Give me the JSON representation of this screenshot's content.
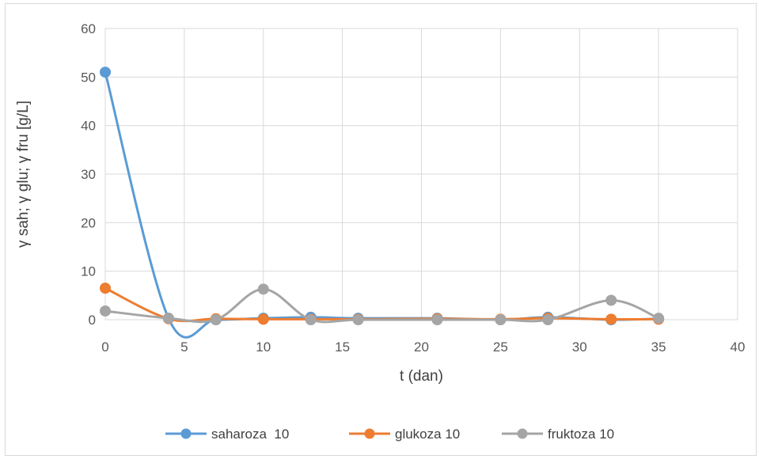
{
  "chart_data": {
    "type": "line",
    "xlabel": "t (dan)",
    "ylabel": "γ sah; γ glu; γ fru [g/L]",
    "xlim": [
      0,
      40
    ],
    "ylim": [
      0,
      60
    ],
    "xticks": [
      0,
      5,
      10,
      15,
      20,
      25,
      30,
      35,
      40
    ],
    "yticks": [
      0,
      10,
      20,
      30,
      40,
      50,
      60
    ],
    "grid": true,
    "legend_position": "bottom",
    "x": [
      0,
      4,
      7,
      10,
      13,
      16,
      21,
      25,
      28,
      32,
      35
    ],
    "series": [
      {
        "name": "saharoza  10",
        "color": "#5b9bd5",
        "values": [
          51,
          0.3,
          0,
          0.3,
          0.5,
          0.3,
          0.3,
          0,
          0.5,
          0,
          0.2
        ]
      },
      {
        "name": "glukoza 10",
        "color": "#ed7d31",
        "values": [
          6.5,
          0.2,
          0.2,
          0.1,
          0.1,
          0.1,
          0.2,
          0.1,
          0.3,
          0.1,
          0.1
        ]
      },
      {
        "name": "fruktoza 10",
        "color": "#a5a5a5",
        "values": [
          1.8,
          0.3,
          0,
          6.3,
          0,
          0,
          0,
          0,
          0,
          4,
          0.3
        ]
      }
    ]
  }
}
